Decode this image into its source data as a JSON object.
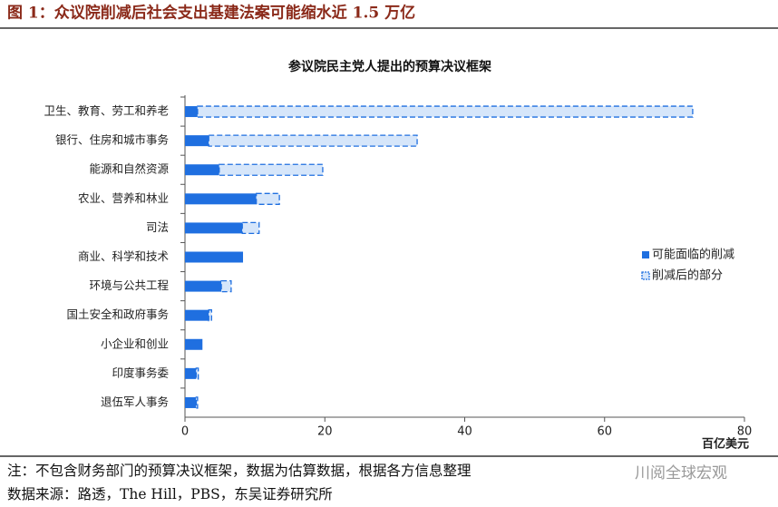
{
  "header": {
    "title": "图 1：众议院削减后社会支出基建法案可能缩水近 1.5 万亿"
  },
  "chart_data": {
    "type": "bar",
    "orientation": "horizontal",
    "stacked": true,
    "title": "参议院民主党人提出的预算决议框架",
    "categories": [
      "卫生、教育、劳工和养老",
      "银行、住房和城市事务",
      "能源和自然资源",
      "农业、营养和林业",
      "司法",
      "商业、科学和技术",
      "环境与公共工程",
      "国土安全和政府事务",
      "小企业和创业",
      "印度事务委",
      "退伍军人事务"
    ],
    "series": [
      {
        "name": "可能面临的削减",
        "color": "#1f6fe0",
        "style": "solid",
        "values": [
          1.8,
          3.4,
          4.9,
          10.2,
          8.2,
          8.3,
          5.2,
          3.4,
          2.5,
          1.6,
          1.6
        ]
      },
      {
        "name": "削减后的部分",
        "color": "#d6e6fa",
        "style": "dashed",
        "values": [
          70.8,
          29.8,
          14.8,
          3.3,
          2.4,
          0,
          1.4,
          0.4,
          0,
          0.3,
          0.2
        ]
      }
    ],
    "xlim": [
      0,
      80
    ],
    "xticks": [
      0,
      20,
      40,
      60,
      80
    ],
    "x_label": "百亿美元",
    "legend": "right"
  },
  "footer": {
    "note": "注：不包含财务部门的预算决议框架，数据为估算数据，根据各方信息整理",
    "source": "数据来源：路透，The Hill，PBS，东吴证券研究所"
  },
  "watermark": "川阅全球宏观"
}
